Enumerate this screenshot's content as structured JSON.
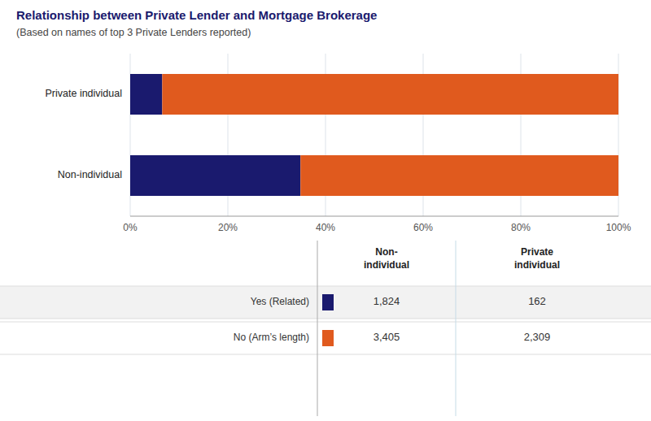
{
  "chart_data": {
    "type": "bar",
    "orientation": "horizontal",
    "stacked": true,
    "title": "Relationship between Private Lender and Mortgage Brokerage",
    "subtitle": "(Based on names of top 3 Private Lenders reported)",
    "categories": [
      "Non-individual",
      "Private individual"
    ],
    "series": [
      {
        "name": "Yes (Related)",
        "color": "#1a1a6e",
        "values": [
          34.88,
          6.56
        ]
      },
      {
        "name": "No (Arm’s length)",
        "color": "#e05a1e",
        "values": [
          65.12,
          93.44
        ]
      }
    ],
    "xlim": [
      0,
      100
    ],
    "xticks": [
      {
        "value": 0,
        "label": "0%"
      },
      {
        "value": 20,
        "label": "20%"
      },
      {
        "value": 40,
        "label": "40%"
      },
      {
        "value": 60,
        "label": "60%"
      },
      {
        "value": 80,
        "label": "80%"
      },
      {
        "value": 100,
        "label": "100%"
      }
    ],
    "grid": true,
    "table": {
      "columns": [
        "Non-\nindividual",
        "Private\nindividual"
      ],
      "values": [
        [
          1824,
          162
        ],
        [
          3405,
          2309
        ]
      ],
      "value_labels": [
        [
          "1,824",
          "162"
        ],
        [
          "3,405",
          "2,309"
        ]
      ]
    }
  }
}
